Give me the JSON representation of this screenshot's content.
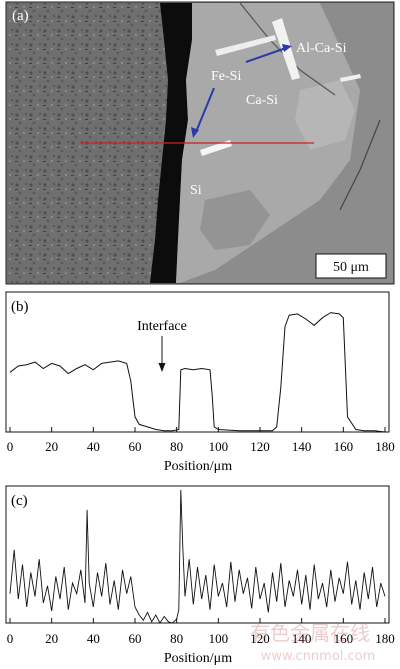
{
  "figure": {
    "panel_a": {
      "letter": "(a)",
      "phase_labels": [
        "Al-Ca-Si",
        "Fe-Si",
        "Ca-Si",
        "Si"
      ],
      "scale_bar": "50 μm"
    },
    "panel_b": {
      "letter": "(b)",
      "annotation": "Interface",
      "xlabel": "Position/μm"
    },
    "panel_c": {
      "letter": "(c)",
      "xlabel": "Position/μm"
    },
    "watermark": {
      "line1": "有色金属在线",
      "line2": "www.cnnmol.com"
    }
  },
  "chart_data": [
    {
      "type": "line",
      "panel": "(b)",
      "xlabel": "Position/μm",
      "ylabel": "",
      "xlim": [
        0,
        180
      ],
      "ylim": [
        0,
        1
      ],
      "xticks": [
        0,
        20,
        40,
        60,
        80,
        100,
        120,
        140,
        160,
        180
      ],
      "annotation": {
        "text": "Interface",
        "x": 72
      },
      "series": [
        {
          "x": [
            0,
            4,
            8,
            12,
            16,
            20,
            24,
            28,
            32,
            36,
            40,
            44,
            48,
            52,
            56,
            58,
            60,
            62,
            66,
            70,
            74,
            78,
            81,
            82,
            84,
            88,
            92,
            96,
            97,
            98,
            100,
            110,
            120,
            126,
            128,
            130,
            132,
            134,
            138,
            142,
            146,
            150,
            154,
            158,
            160,
            162,
            166,
            170,
            175,
            180
          ],
          "y": [
            0.47,
            0.52,
            0.53,
            0.55,
            0.5,
            0.54,
            0.52,
            0.46,
            0.5,
            0.53,
            0.49,
            0.54,
            0.55,
            0.56,
            0.54,
            0.4,
            0.12,
            0.06,
            0.04,
            0.02,
            0.01,
            0.01,
            0.02,
            0.49,
            0.5,
            0.49,
            0.5,
            0.49,
            0.3,
            0.04,
            0.02,
            0.01,
            0.01,
            0.01,
            0.04,
            0.35,
            0.83,
            0.92,
            0.93,
            0.89,
            0.84,
            0.9,
            0.94,
            0.93,
            0.9,
            0.12,
            0.02,
            0.01,
            0.01,
            0.0
          ]
        }
      ]
    },
    {
      "type": "line",
      "panel": "(c)",
      "xlabel": "Position/μm",
      "ylabel": "",
      "xlim": [
        0,
        180
      ],
      "ylim": [
        0,
        1
      ],
      "xticks": [
        0,
        20,
        40,
        60,
        80,
        100,
        120,
        140,
        160,
        180
      ],
      "series": [
        {
          "x": [
            0,
            2,
            4,
            6,
            8,
            10,
            12,
            14,
            16,
            18,
            20,
            22,
            24,
            26,
            28,
            30,
            32,
            34,
            36,
            37,
            38,
            40,
            42,
            44,
            46,
            48,
            50,
            52,
            54,
            56,
            58,
            60,
            62,
            64,
            66,
            68,
            70,
            72,
            74,
            76,
            78,
            80,
            81,
            82,
            83,
            84,
            86,
            88,
            90,
            92,
            94,
            96,
            98,
            100,
            102,
            104,
            106,
            108,
            110,
            112,
            114,
            116,
            118,
            120,
            122,
            124,
            126,
            128,
            130,
            132,
            134,
            136,
            138,
            140,
            142,
            144,
            146,
            148,
            150,
            152,
            154,
            156,
            158,
            160,
            162,
            164,
            166,
            168,
            170,
            172,
            174,
            176,
            178,
            180
          ],
          "y": [
            0.22,
            0.55,
            0.18,
            0.44,
            0.12,
            0.38,
            0.2,
            0.48,
            0.15,
            0.28,
            0.09,
            0.35,
            0.18,
            0.42,
            0.1,
            0.3,
            0.22,
            0.4,
            0.15,
            0.85,
            0.3,
            0.12,
            0.38,
            0.2,
            0.45,
            0.14,
            0.32,
            0.1,
            0.4,
            0.22,
            0.35,
            0.12,
            0.06,
            0.02,
            0.08,
            0.01,
            0.06,
            0.0,
            0.05,
            0.01,
            0.0,
            0.03,
            0.1,
            1.0,
            0.55,
            0.2,
            0.48,
            0.14,
            0.42,
            0.18,
            0.36,
            0.1,
            0.44,
            0.2,
            0.3,
            0.12,
            0.46,
            0.16,
            0.4,
            0.22,
            0.34,
            0.11,
            0.42,
            0.18,
            0.3,
            0.08,
            0.38,
            0.16,
            0.45,
            0.12,
            0.32,
            0.2,
            0.4,
            0.14,
            0.36,
            0.1,
            0.44,
            0.18,
            0.3,
            0.12,
            0.4,
            0.16,
            0.34,
            0.22,
            0.46,
            0.14,
            0.32,
            0.1,
            0.38,
            0.18,
            0.42,
            0.12,
            0.3,
            0.2
          ]
        }
      ]
    }
  ]
}
